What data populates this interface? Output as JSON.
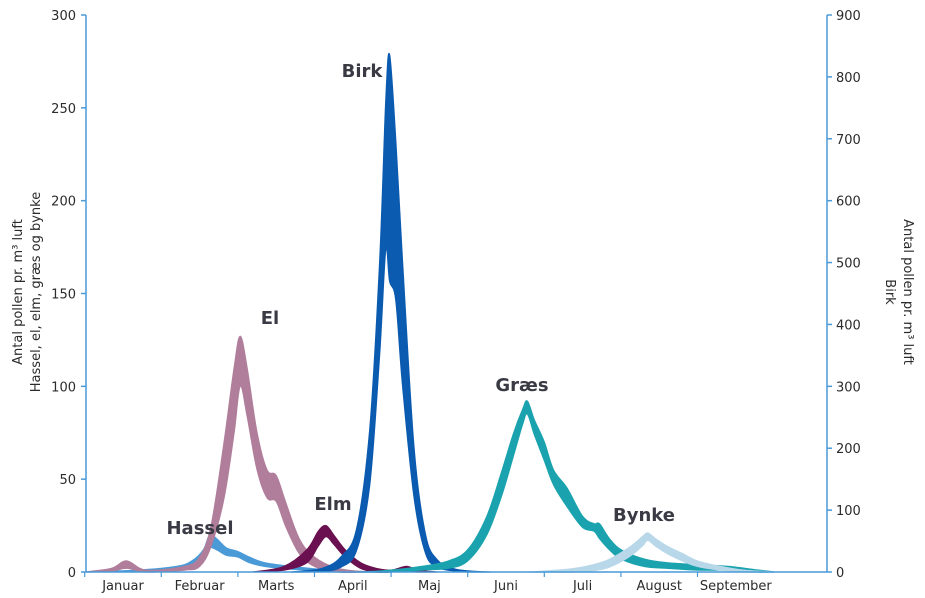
{
  "chart_data": {
    "type": "area",
    "x_axis": {
      "categories": [
        "Januar",
        "Februar",
        "Marts",
        "April",
        "Maj",
        "Juni",
        "Juli",
        "August",
        "September"
      ]
    },
    "y_axis_left": {
      "label_line1": "Antal pollen pr. m³ luft",
      "label_line2": "Hassel, el, elm, græs og bynke",
      "ylim": [
        0,
        300
      ],
      "ticks": [
        "0",
        "50",
        "100",
        "150",
        "200",
        "250",
        "300"
      ]
    },
    "y_axis_right": {
      "label_line1": "Antal pollen pr. m³ luft",
      "label_line2": "Birk",
      "ylim": [
        0,
        900
      ],
      "ticks": [
        "0",
        "100",
        "200",
        "300",
        "400",
        "500",
        "600",
        "700",
        "800",
        "900"
      ]
    },
    "series": [
      {
        "name": "Hassel",
        "axis": "left",
        "color": "#4a9ad8",
        "points": [
          [
            0.0,
            0,
            0
          ],
          [
            0.7,
            1,
            0.5
          ],
          [
            1.2,
            3,
            1.5
          ],
          [
            1.4,
            6,
            4
          ],
          [
            1.55,
            12,
            8
          ],
          [
            1.63,
            20,
            13
          ],
          [
            1.72,
            18,
            12
          ],
          [
            1.85,
            13,
            9
          ],
          [
            2.0,
            11,
            8
          ],
          [
            2.15,
            8,
            5
          ],
          [
            2.35,
            5,
            3
          ],
          [
            2.7,
            3,
            1.5
          ],
          [
            3.2,
            1,
            0.5
          ],
          [
            3.8,
            0,
            0
          ]
        ]
      },
      {
        "name": "El",
        "axis": "left",
        "color": "#b07e9b",
        "points": [
          [
            0.0,
            0,
            0
          ],
          [
            0.35,
            2,
            0.5
          ],
          [
            0.55,
            6,
            2
          ],
          [
            0.8,
            1,
            0
          ],
          [
            1.3,
            3,
            1
          ],
          [
            1.5,
            8,
            3
          ],
          [
            1.65,
            25,
            14
          ],
          [
            1.82,
            70,
            40
          ],
          [
            1.95,
            110,
            75
          ],
          [
            2.03,
            127,
            100
          ],
          [
            2.12,
            110,
            84
          ],
          [
            2.25,
            75,
            55
          ],
          [
            2.38,
            55,
            40
          ],
          [
            2.5,
            52,
            38
          ],
          [
            2.62,
            38,
            25
          ],
          [
            2.8,
            18,
            10
          ],
          [
            3.0,
            8,
            3
          ],
          [
            3.3,
            2,
            0
          ],
          [
            3.7,
            0,
            0
          ]
        ]
      },
      {
        "name": "Elm",
        "axis": "left",
        "color": "#6a1050",
        "points": [
          [
            2.2,
            0,
            0
          ],
          [
            2.6,
            3,
            1
          ],
          [
            2.9,
            12,
            5
          ],
          [
            3.05,
            22,
            14
          ],
          [
            3.15,
            25,
            19
          ],
          [
            3.25,
            20,
            15
          ],
          [
            3.4,
            12,
            8
          ],
          [
            3.6,
            5,
            2
          ],
          [
            3.8,
            2,
            0
          ],
          [
            4.0,
            1,
            0
          ],
          [
            4.2,
            3,
            0.5
          ],
          [
            4.35,
            1,
            0
          ],
          [
            4.6,
            0,
            0
          ]
        ]
      },
      {
        "name": "Birk",
        "axis": "right",
        "color": "#0b5bb0",
        "points": [
          [
            2.7,
            0,
            0
          ],
          [
            3.1,
            6,
            1
          ],
          [
            3.35,
            25,
            8
          ],
          [
            3.55,
            70,
            35
          ],
          [
            3.72,
            230,
            140
          ],
          [
            3.85,
            500,
            350
          ],
          [
            3.93,
            760,
            520
          ],
          [
            3.98,
            836,
            470
          ],
          [
            4.06,
            700,
            440
          ],
          [
            4.15,
            500,
            300
          ],
          [
            4.3,
            200,
            120
          ],
          [
            4.45,
            60,
            30
          ],
          [
            4.6,
            20,
            8
          ],
          [
            4.8,
            6,
            2
          ],
          [
            5.0,
            2,
            0
          ],
          [
            5.3,
            0,
            0
          ]
        ]
      },
      {
        "name": "Græs",
        "axis": "left",
        "color": "#1aa3ae",
        "points": [
          [
            3.6,
            0,
            0
          ],
          [
            4.0,
            1,
            0
          ],
          [
            4.4,
            3,
            1
          ],
          [
            4.75,
            6,
            2
          ],
          [
            5.0,
            12,
            6
          ],
          [
            5.25,
            30,
            20
          ],
          [
            5.45,
            55,
            42
          ],
          [
            5.6,
            75,
            63
          ],
          [
            5.72,
            88,
            80
          ],
          [
            5.78,
            92,
            85
          ],
          [
            5.87,
            82,
            74
          ],
          [
            6.0,
            70,
            60
          ],
          [
            6.12,
            55,
            47
          ],
          [
            6.3,
            45,
            35
          ],
          [
            6.5,
            30,
            24
          ],
          [
            6.65,
            26,
            22
          ],
          [
            6.72,
            26,
            18
          ],
          [
            6.85,
            18,
            12
          ],
          [
            7.0,
            12,
            7
          ],
          [
            7.3,
            7,
            3
          ],
          [
            7.6,
            5,
            2
          ],
          [
            8.0,
            4,
            1
          ],
          [
            8.4,
            3,
            1
          ],
          [
            8.8,
            1,
            0
          ],
          [
            9.0,
            0,
            0
          ]
        ]
      },
      {
        "name": "Bynke",
        "axis": "left",
        "color": "#b8d8ea",
        "points": [
          [
            5.8,
            0,
            0
          ],
          [
            6.4,
            2,
            0
          ],
          [
            6.8,
            6,
            2
          ],
          [
            7.1,
            13,
            8
          ],
          [
            7.28,
            19,
            14
          ],
          [
            7.35,
            21,
            17
          ],
          [
            7.45,
            18,
            14
          ],
          [
            7.6,
            14,
            10
          ],
          [
            7.8,
            10,
            6
          ],
          [
            8.0,
            6,
            3
          ],
          [
            8.3,
            3,
            1
          ],
          [
            8.6,
            1,
            0
          ],
          [
            9.0,
            0,
            0
          ]
        ]
      }
    ]
  }
}
